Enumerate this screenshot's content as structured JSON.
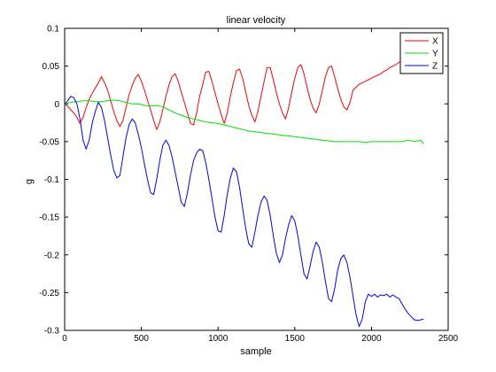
{
  "chart_data": {
    "type": "line",
    "title": "linear velocity",
    "xlabel": "sample",
    "ylabel": "g",
    "xlim": [
      0,
      2500
    ],
    "ylim": [
      -0.3,
      0.1
    ],
    "xticks": [
      0,
      500,
      1000,
      1500,
      2000,
      2500
    ],
    "xtick_labels": [
      "0",
      "500",
      "1000",
      "1500",
      "2000",
      "2500"
    ],
    "yticks": [
      0.1,
      0.05,
      0,
      -0.05,
      -0.1,
      -0.15,
      -0.2,
      -0.25,
      -0.3
    ],
    "ytick_labels": [
      "0.1",
      "0.05",
      "0",
      "-0.05",
      "-0.1",
      "-0.15",
      "-0.2",
      "-0.25",
      "-0.3"
    ],
    "grid": false,
    "legend_position": "top-right",
    "series": [
      {
        "name": "X",
        "color": "#ff0000",
        "points": [
          [
            0,
            0
          ],
          [
            20,
            -0.003
          ],
          [
            40,
            -0.008
          ],
          [
            60,
            -0.012
          ],
          [
            80,
            -0.018
          ],
          [
            100,
            -0.026
          ],
          [
            120,
            -0.018
          ],
          [
            140,
            -0.005
          ],
          [
            160,
            0.006
          ],
          [
            180,
            0.014
          ],
          [
            200,
            0.021
          ],
          [
            220,
            0.028
          ],
          [
            240,
            0.036
          ],
          [
            260,
            0.028
          ],
          [
            280,
            0.018
          ],
          [
            300,
            0.004
          ],
          [
            320,
            -0.01
          ],
          [
            340,
            -0.022
          ],
          [
            360,
            -0.03
          ],
          [
            380,
            -0.022
          ],
          [
            400,
            -0.005
          ],
          [
            420,
            0.012
          ],
          [
            440,
            0.024
          ],
          [
            460,
            0.034
          ],
          [
            480,
            0.039
          ],
          [
            500,
            0.03
          ],
          [
            520,
            0.018
          ],
          [
            540,
            0.005
          ],
          [
            560,
            -0.008
          ],
          [
            580,
            -0.022
          ],
          [
            600,
            -0.034
          ],
          [
            620,
            -0.024
          ],
          [
            640,
            -0.008
          ],
          [
            660,
            0.01
          ],
          [
            680,
            0.025
          ],
          [
            700,
            0.036
          ],
          [
            720,
            0.04
          ],
          [
            740,
            0.03
          ],
          [
            760,
            0.016
          ],
          [
            780,
            0.002
          ],
          [
            800,
            -0.012
          ],
          [
            820,
            -0.026
          ],
          [
            840,
            -0.028
          ],
          [
            860,
            -0.012
          ],
          [
            880,
            0.01
          ],
          [
            900,
            0.026
          ],
          [
            920,
            0.042
          ],
          [
            940,
            0.043
          ],
          [
            960,
            0.03
          ],
          [
            980,
            0.015
          ],
          [
            1000,
            0.0
          ],
          [
            1020,
            -0.014
          ],
          [
            1040,
            -0.026
          ],
          [
            1060,
            -0.012
          ],
          [
            1080,
            0.01
          ],
          [
            1100,
            0.028
          ],
          [
            1120,
            0.044
          ],
          [
            1140,
            0.046
          ],
          [
            1160,
            0.034
          ],
          [
            1180,
            0.016
          ],
          [
            1200,
            -0.002
          ],
          [
            1220,
            -0.015
          ],
          [
            1240,
            -0.024
          ],
          [
            1260,
            -0.01
          ],
          [
            1280,
            0.01
          ],
          [
            1300,
            0.03
          ],
          [
            1320,
            0.048
          ],
          [
            1340,
            0.048
          ],
          [
            1360,
            0.032
          ],
          [
            1380,
            0.015
          ],
          [
            1400,
            0.0
          ],
          [
            1420,
            -0.012
          ],
          [
            1440,
            -0.02
          ],
          [
            1460,
            -0.005
          ],
          [
            1480,
            0.015
          ],
          [
            1500,
            0.034
          ],
          [
            1520,
            0.048
          ],
          [
            1540,
            0.052
          ],
          [
            1560,
            0.04
          ],
          [
            1580,
            0.022
          ],
          [
            1600,
            0.006
          ],
          [
            1620,
            -0.006
          ],
          [
            1640,
            -0.012
          ],
          [
            1660,
            0.0
          ],
          [
            1680,
            0.018
          ],
          [
            1700,
            0.036
          ],
          [
            1720,
            0.048
          ],
          [
            1740,
            0.05
          ],
          [
            1760,
            0.036
          ],
          [
            1780,
            0.02
          ],
          [
            1800,
            0.006
          ],
          [
            1820,
            -0.004
          ],
          [
            1840,
            -0.008
          ],
          [
            1860,
            0.002
          ],
          [
            1880,
            0.018
          ],
          [
            1900,
            0.022
          ],
          [
            1920,
            0.026
          ],
          [
            1940,
            0.028
          ],
          [
            1960,
            0.03
          ],
          [
            1980,
            0.032
          ],
          [
            2000,
            0.034
          ],
          [
            2020,
            0.036
          ],
          [
            2040,
            0.038
          ],
          [
            2060,
            0.04
          ],
          [
            2080,
            0.043
          ],
          [
            2100,
            0.045
          ],
          [
            2120,
            0.048
          ],
          [
            2140,
            0.05
          ],
          [
            2160,
            0.052
          ],
          [
            2180,
            0.055
          ],
          [
            2200,
            0.058
          ],
          [
            2220,
            0.06
          ],
          [
            2240,
            0.062
          ]
        ]
      },
      {
        "name": "Y",
        "color": "#00dd00",
        "points": [
          [
            0,
            0
          ],
          [
            40,
            0.002
          ],
          [
            80,
            0.003
          ],
          [
            120,
            0.004
          ],
          [
            160,
            0.004
          ],
          [
            200,
            0.003
          ],
          [
            240,
            0.003
          ],
          [
            280,
            0.004
          ],
          [
            320,
            0.005
          ],
          [
            360,
            0.004
          ],
          [
            400,
            0.002
          ],
          [
            440,
            0.0
          ],
          [
            480,
            0.0
          ],
          [
            520,
            -0.002
          ],
          [
            560,
            -0.003
          ],
          [
            600,
            -0.002
          ],
          [
            640,
            -0.004
          ],
          [
            680,
            -0.008
          ],
          [
            720,
            -0.012
          ],
          [
            760,
            -0.015
          ],
          [
            800,
            -0.018
          ],
          [
            840,
            -0.02
          ],
          [
            880,
            -0.022
          ],
          [
            920,
            -0.024
          ],
          [
            960,
            -0.025
          ],
          [
            1000,
            -0.026
          ],
          [
            1040,
            -0.028
          ],
          [
            1080,
            -0.03
          ],
          [
            1120,
            -0.032
          ],
          [
            1160,
            -0.034
          ],
          [
            1200,
            -0.036
          ],
          [
            1240,
            -0.037
          ],
          [
            1280,
            -0.038
          ],
          [
            1320,
            -0.039
          ],
          [
            1360,
            -0.04
          ],
          [
            1400,
            -0.041
          ],
          [
            1440,
            -0.042
          ],
          [
            1480,
            -0.043
          ],
          [
            1520,
            -0.044
          ],
          [
            1560,
            -0.045
          ],
          [
            1600,
            -0.046
          ],
          [
            1640,
            -0.047
          ],
          [
            1680,
            -0.048
          ],
          [
            1720,
            -0.049
          ],
          [
            1760,
            -0.05
          ],
          [
            1800,
            -0.05
          ],
          [
            1840,
            -0.05
          ],
          [
            1880,
            -0.05
          ],
          [
            1920,
            -0.05
          ],
          [
            1960,
            -0.051
          ],
          [
            2000,
            -0.05
          ],
          [
            2040,
            -0.05
          ],
          [
            2080,
            -0.05
          ],
          [
            2120,
            -0.05
          ],
          [
            2160,
            -0.05
          ],
          [
            2200,
            -0.05
          ],
          [
            2240,
            -0.048
          ],
          [
            2280,
            -0.05
          ],
          [
            2320,
            -0.048
          ],
          [
            2340,
            -0.053
          ]
        ]
      },
      {
        "name": "Z",
        "color": "#0000ff",
        "points": [
          [
            0,
            0
          ],
          [
            20,
            0.004
          ],
          [
            40,
            0.01
          ],
          [
            60,
            0.008
          ],
          [
            80,
            0.0
          ],
          [
            100,
            -0.02
          ],
          [
            120,
            -0.048
          ],
          [
            140,
            -0.06
          ],
          [
            160,
            -0.048
          ],
          [
            180,
            -0.025
          ],
          [
            200,
            -0.01
          ],
          [
            220,
            0.002
          ],
          [
            240,
            -0.005
          ],
          [
            260,
            -0.022
          ],
          [
            280,
            -0.045
          ],
          [
            300,
            -0.068
          ],
          [
            320,
            -0.088
          ],
          [
            340,
            -0.098
          ],
          [
            360,
            -0.095
          ],
          [
            380,
            -0.07
          ],
          [
            400,
            -0.045
          ],
          [
            420,
            -0.028
          ],
          [
            440,
            -0.02
          ],
          [
            460,
            -0.025
          ],
          [
            480,
            -0.04
          ],
          [
            500,
            -0.058
          ],
          [
            520,
            -0.08
          ],
          [
            540,
            -0.1
          ],
          [
            560,
            -0.118
          ],
          [
            580,
            -0.12
          ],
          [
            600,
            -0.1
          ],
          [
            620,
            -0.075
          ],
          [
            640,
            -0.055
          ],
          [
            660,
            -0.048
          ],
          [
            680,
            -0.055
          ],
          [
            700,
            -0.07
          ],
          [
            720,
            -0.09
          ],
          [
            740,
            -0.11
          ],
          [
            760,
            -0.13
          ],
          [
            780,
            -0.136
          ],
          [
            800,
            -0.118
          ],
          [
            820,
            -0.095
          ],
          [
            840,
            -0.075
          ],
          [
            860,
            -0.065
          ],
          [
            880,
            -0.06
          ],
          [
            900,
            -0.062
          ],
          [
            920,
            -0.078
          ],
          [
            940,
            -0.1
          ],
          [
            960,
            -0.125
          ],
          [
            980,
            -0.15
          ],
          [
            1000,
            -0.168
          ],
          [
            1020,
            -0.17
          ],
          [
            1040,
            -0.148
          ],
          [
            1060,
            -0.12
          ],
          [
            1080,
            -0.098
          ],
          [
            1100,
            -0.085
          ],
          [
            1120,
            -0.09
          ],
          [
            1140,
            -0.11
          ],
          [
            1160,
            -0.138
          ],
          [
            1180,
            -0.165
          ],
          [
            1200,
            -0.185
          ],
          [
            1220,
            -0.19
          ],
          [
            1240,
            -0.17
          ],
          [
            1260,
            -0.148
          ],
          [
            1280,
            -0.13
          ],
          [
            1300,
            -0.122
          ],
          [
            1320,
            -0.128
          ],
          [
            1340,
            -0.148
          ],
          [
            1360,
            -0.175
          ],
          [
            1380,
            -0.198
          ],
          [
            1400,
            -0.21
          ],
          [
            1420,
            -0.2
          ],
          [
            1440,
            -0.178
          ],
          [
            1460,
            -0.16
          ],
          [
            1480,
            -0.148
          ],
          [
            1500,
            -0.155
          ],
          [
            1520,
            -0.175
          ],
          [
            1540,
            -0.2
          ],
          [
            1560,
            -0.225
          ],
          [
            1580,
            -0.232
          ],
          [
            1600,
            -0.215
          ],
          [
            1620,
            -0.195
          ],
          [
            1640,
            -0.183
          ],
          [
            1660,
            -0.19
          ],
          [
            1680,
            -0.21
          ],
          [
            1700,
            -0.235
          ],
          [
            1720,
            -0.258
          ],
          [
            1740,
            -0.262
          ],
          [
            1760,
            -0.245
          ],
          [
            1780,
            -0.22
          ],
          [
            1800,
            -0.205
          ],
          [
            1820,
            -0.2
          ],
          [
            1840,
            -0.21
          ],
          [
            1860,
            -0.23
          ],
          [
            1880,
            -0.255
          ],
          [
            1900,
            -0.28
          ],
          [
            1920,
            -0.295
          ],
          [
            1940,
            -0.285
          ],
          [
            1960,
            -0.262
          ],
          [
            1980,
            -0.252
          ],
          [
            2000,
            -0.255
          ],
          [
            2020,
            -0.252
          ],
          [
            2040,
            -0.256
          ],
          [
            2060,
            -0.253
          ],
          [
            2080,
            -0.254
          ],
          [
            2100,
            -0.252
          ],
          [
            2120,
            -0.256
          ],
          [
            2140,
            -0.253
          ],
          [
            2160,
            -0.256
          ],
          [
            2180,
            -0.258
          ],
          [
            2200,
            -0.265
          ],
          [
            2220,
            -0.272
          ],
          [
            2240,
            -0.278
          ],
          [
            2260,
            -0.282
          ],
          [
            2280,
            -0.286
          ],
          [
            2300,
            -0.287
          ],
          [
            2320,
            -0.286
          ],
          [
            2340,
            -0.285
          ]
        ]
      }
    ]
  }
}
